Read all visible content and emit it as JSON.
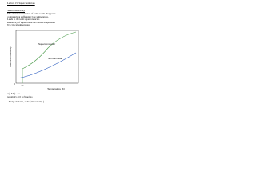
{
  "header": {
    "title": "Lecture 15: Superconductors"
  },
  "intro": {
    "heading": "Superconductivity",
    "lines": [
      "The electrical resistance of some solids disappears",
      "completely at sufficiently low temperature.",
      "Leads to the term superconductor.",
      "Resistivity of superconductors versus temperature",
      "Tc: critical temperature"
    ]
  },
  "figure": {
    "y_label": "Electrical resistivity",
    "x_label": "Temperature (K)",
    "curve_labels": [
      "Superconductor",
      "Normal metal"
    ],
    "tick_labels": [
      "0",
      "Tc"
    ]
  },
  "notes": {
    "lines": [
      "~(4.6 K) - no",
      "resistivity at 0 K (blue) no",
      "- Many elements, at Tc (critical temp.)"
    ]
  }
}
